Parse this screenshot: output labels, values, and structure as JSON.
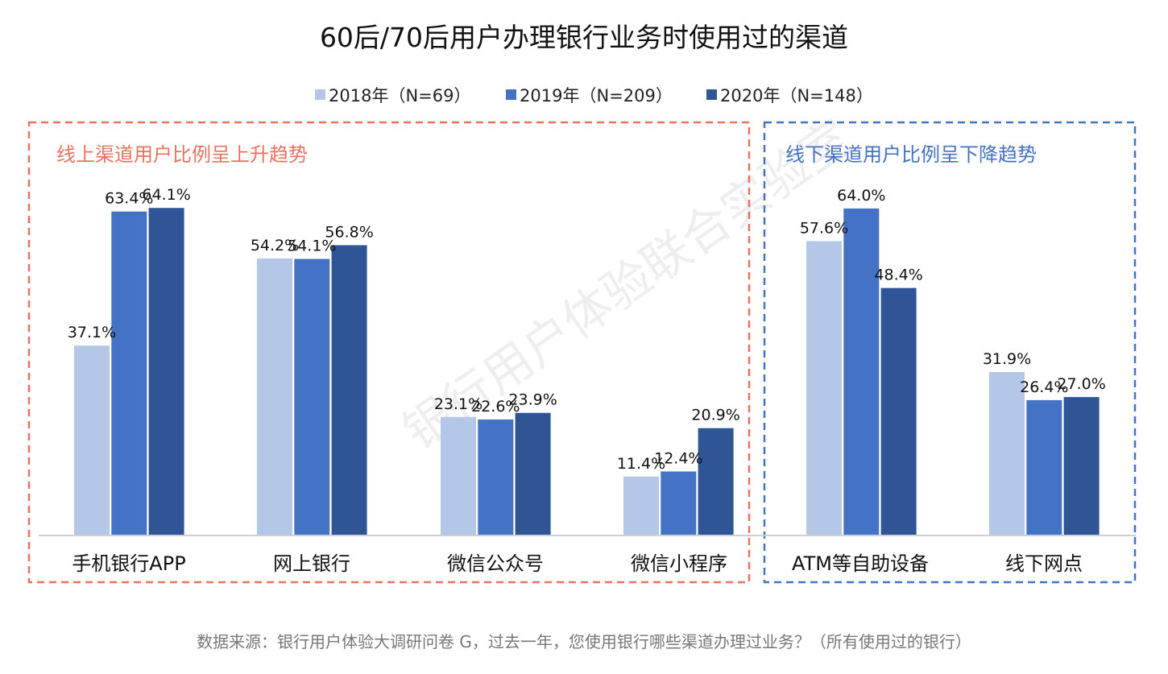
{
  "chart_data": {
    "type": "bar",
    "title": "60后/70后用户办理银行业务时使用过的渠道",
    "categories": [
      "手机银行APP",
      "网上银行",
      "微信公众号",
      "微信小程序",
      "ATM等自助设备",
      "线下网点"
    ],
    "series": [
      {
        "name": "2018年（N=69）",
        "color": "#b4c7e7",
        "values": [
          37.1,
          54.2,
          23.1,
          11.4,
          57.6,
          31.9
        ],
        "labels": [
          "37.1%",
          "54.2%",
          "23.1%",
          "11.4%",
          "57.6%",
          "31.9%"
        ]
      },
      {
        "name": "2019年（N=209）",
        "color": "#4472c4",
        "values": [
          63.4,
          54.1,
          22.6,
          12.4,
          64.0,
          26.4
        ],
        "labels": [
          "63.4%",
          "54.1%",
          "22.6%",
          "12.4%",
          "64.0%",
          "26.4%"
        ]
      },
      {
        "name": "2020年（N=148）",
        "color": "#2f5597",
        "values": [
          64.1,
          56.8,
          23.9,
          20.9,
          48.4,
          27.0
        ],
        "labels": [
          "64.1%",
          "56.8%",
          "23.9%",
          "20.9%",
          "48.4%",
          "27.0%"
        ]
      }
    ],
    "unit": "%",
    "legend_position": "top",
    "grid": false,
    "annotations": [
      {
        "text": "线上渠道用户比例呈上升趋势",
        "color": "#e8735f",
        "categories": [
          0,
          1,
          2,
          3
        ]
      },
      {
        "text": "线下渠道用户比例呈下降趋势",
        "color": "#4472c4",
        "categories": [
          4,
          5
        ]
      }
    ],
    "source": "数据来源：银行用户体验大调研问卷 G，过去一年，您使用银行哪些渠道办理过业务？（所有使用过的银行）",
    "watermark": "银行用户体验联合实验室"
  }
}
